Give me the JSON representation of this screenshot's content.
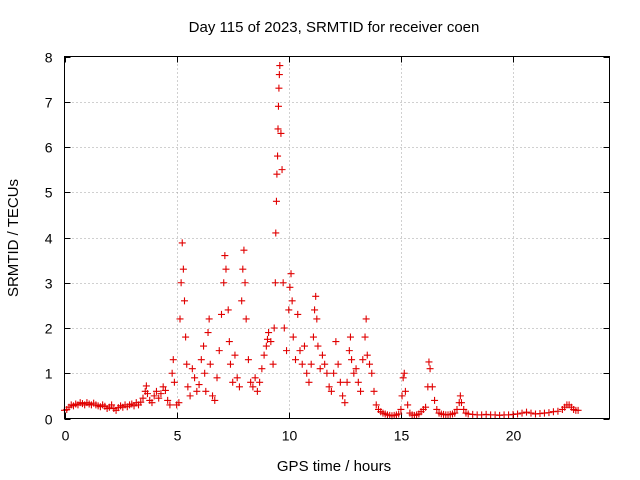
{
  "chart_data": {
    "type": "scatter",
    "title": "Day 115 of 2023, SRMTID for receiver coen",
    "xlabel": "GPS time / hours",
    "ylabel": "SRMTID / TECUs",
    "xlim": [
      0,
      24.3
    ],
    "ylim": [
      0,
      8
    ],
    "xticks": [
      0,
      5,
      10,
      15,
      20
    ],
    "yticks": [
      0,
      1,
      2,
      3,
      4,
      5,
      6,
      7,
      8
    ],
    "grid": true,
    "marker": "plus",
    "series_color": "#e00000",
    "series": [
      {
        "name": "SRMTID",
        "points": [
          [
            0.0,
            0.18
          ],
          [
            0.1,
            0.2
          ],
          [
            0.2,
            0.25
          ],
          [
            0.3,
            0.3
          ],
          [
            0.4,
            0.28
          ],
          [
            0.5,
            0.32
          ],
          [
            0.6,
            0.3
          ],
          [
            0.7,
            0.35
          ],
          [
            0.8,
            0.33
          ],
          [
            0.9,
            0.3
          ],
          [
            1.0,
            0.35
          ],
          [
            1.1,
            0.32
          ],
          [
            1.2,
            0.3
          ],
          [
            1.3,
            0.34
          ],
          [
            1.4,
            0.3
          ],
          [
            1.5,
            0.28
          ],
          [
            1.6,
            0.26
          ],
          [
            1.7,
            0.3
          ],
          [
            1.8,
            0.27
          ],
          [
            1.9,
            0.22
          ],
          [
            2.0,
            0.25
          ],
          [
            2.1,
            0.3
          ],
          [
            2.2,
            0.22
          ],
          [
            2.3,
            0.18
          ],
          [
            2.4,
            0.24
          ],
          [
            2.5,
            0.28
          ],
          [
            2.6,
            0.25
          ],
          [
            2.7,
            0.3
          ],
          [
            2.8,
            0.26
          ],
          [
            2.9,
            0.3
          ],
          [
            3.0,
            0.32
          ],
          [
            3.1,
            0.28
          ],
          [
            3.2,
            0.35
          ],
          [
            3.3,
            0.3
          ],
          [
            3.4,
            0.36
          ],
          [
            3.5,
            0.45
          ],
          [
            3.6,
            0.6
          ],
          [
            3.65,
            0.72
          ],
          [
            3.7,
            0.55
          ],
          [
            3.8,
            0.4
          ],
          [
            3.9,
            0.35
          ],
          [
            4.0,
            0.5
          ],
          [
            4.1,
            0.6
          ],
          [
            4.2,
            0.45
          ],
          [
            4.3,
            0.55
          ],
          [
            4.4,
            0.7
          ],
          [
            4.5,
            0.62
          ],
          [
            4.6,
            0.4
          ],
          [
            4.7,
            0.3
          ],
          [
            4.8,
            1.0
          ],
          [
            4.85,
            1.3
          ],
          [
            4.9,
            0.8
          ],
          [
            5.0,
            0.3
          ],
          [
            5.1,
            0.35
          ],
          [
            5.15,
            2.2
          ],
          [
            5.2,
            3.0
          ],
          [
            5.25,
            3.88
          ],
          [
            5.3,
            3.3
          ],
          [
            5.35,
            2.6
          ],
          [
            5.4,
            1.8
          ],
          [
            5.45,
            1.2
          ],
          [
            5.5,
            0.7
          ],
          [
            5.6,
            0.5
          ],
          [
            5.7,
            1.1
          ],
          [
            5.8,
            0.9
          ],
          [
            5.9,
            0.6
          ],
          [
            6.0,
            0.75
          ],
          [
            6.1,
            1.3
          ],
          [
            6.2,
            1.6
          ],
          [
            6.25,
            1.0
          ],
          [
            6.3,
            0.6
          ],
          [
            6.4,
            1.9
          ],
          [
            6.45,
            2.2
          ],
          [
            6.5,
            1.2
          ],
          [
            6.6,
            0.5
          ],
          [
            6.7,
            0.4
          ],
          [
            6.8,
            0.9
          ],
          [
            6.9,
            1.5
          ],
          [
            7.0,
            2.3
          ],
          [
            7.1,
            3.0
          ],
          [
            7.15,
            3.6
          ],
          [
            7.2,
            3.3
          ],
          [
            7.3,
            2.4
          ],
          [
            7.35,
            1.7
          ],
          [
            7.4,
            1.2
          ],
          [
            7.5,
            0.8
          ],
          [
            7.6,
            1.4
          ],
          [
            7.7,
            0.9
          ],
          [
            7.8,
            0.7
          ],
          [
            7.9,
            2.6
          ],
          [
            7.95,
            3.3
          ],
          [
            8.0,
            3.72
          ],
          [
            8.05,
            3.0
          ],
          [
            8.1,
            2.2
          ],
          [
            8.2,
            1.3
          ],
          [
            8.3,
            0.8
          ],
          [
            8.4,
            0.7
          ],
          [
            8.5,
            0.9
          ],
          [
            8.6,
            0.6
          ],
          [
            8.7,
            0.8
          ],
          [
            8.8,
            1.1
          ],
          [
            8.9,
            1.4
          ],
          [
            9.0,
            1.6
          ],
          [
            9.05,
            1.75
          ],
          [
            9.1,
            1.9
          ],
          [
            9.2,
            1.7
          ],
          [
            9.3,
            1.2
          ],
          [
            9.35,
            2.0
          ],
          [
            9.4,
            3.0
          ],
          [
            9.42,
            4.1
          ],
          [
            9.45,
            4.8
          ],
          [
            9.47,
            5.4
          ],
          [
            9.5,
            5.8
          ],
          [
            9.52,
            6.4
          ],
          [
            9.54,
            6.9
          ],
          [
            9.56,
            7.3
          ],
          [
            9.58,
            7.6
          ],
          [
            9.6,
            7.8
          ],
          [
            9.65,
            6.3
          ],
          [
            9.7,
            5.5
          ],
          [
            9.75,
            3.0
          ],
          [
            9.8,
            2.0
          ],
          [
            9.9,
            1.5
          ],
          [
            10.0,
            2.4
          ],
          [
            10.05,
            2.9
          ],
          [
            10.1,
            3.2
          ],
          [
            10.15,
            2.6
          ],
          [
            10.2,
            1.8
          ],
          [
            10.3,
            1.3
          ],
          [
            10.4,
            2.3
          ],
          [
            10.5,
            1.5
          ],
          [
            10.6,
            1.2
          ],
          [
            10.7,
            1.6
          ],
          [
            10.8,
            1.0
          ],
          [
            10.9,
            0.8
          ],
          [
            11.0,
            1.2
          ],
          [
            11.1,
            1.8
          ],
          [
            11.15,
            2.4
          ],
          [
            11.2,
            2.7
          ],
          [
            11.25,
            2.2
          ],
          [
            11.3,
            1.6
          ],
          [
            11.4,
            1.1
          ],
          [
            11.5,
            1.4
          ],
          [
            11.6,
            1.2
          ],
          [
            11.7,
            1.0
          ],
          [
            11.8,
            0.7
          ],
          [
            11.9,
            0.6
          ],
          [
            12.0,
            1.0
          ],
          [
            12.1,
            1.7
          ],
          [
            12.2,
            1.2
          ],
          [
            12.3,
            0.8
          ],
          [
            12.4,
            0.5
          ],
          [
            12.5,
            0.35
          ],
          [
            12.6,
            0.8
          ],
          [
            12.7,
            1.5
          ],
          [
            12.75,
            1.8
          ],
          [
            12.8,
            1.3
          ],
          [
            12.9,
            1.0
          ],
          [
            13.0,
            1.1
          ],
          [
            13.1,
            0.8
          ],
          [
            13.2,
            0.6
          ],
          [
            13.3,
            1.3
          ],
          [
            13.4,
            1.8
          ],
          [
            13.45,
            2.2
          ],
          [
            13.5,
            1.4
          ],
          [
            13.6,
            1.2
          ],
          [
            13.7,
            1.0
          ],
          [
            13.8,
            0.6
          ],
          [
            13.9,
            0.3
          ],
          [
            14.0,
            0.2
          ],
          [
            14.1,
            0.15
          ],
          [
            14.2,
            0.12
          ],
          [
            14.3,
            0.1
          ],
          [
            14.4,
            0.08
          ],
          [
            14.5,
            0.07
          ],
          [
            14.6,
            0.06
          ],
          [
            14.7,
            0.07
          ],
          [
            14.8,
            0.08
          ],
          [
            14.9,
            0.1
          ],
          [
            15.0,
            0.2
          ],
          [
            15.05,
            0.5
          ],
          [
            15.1,
            0.9
          ],
          [
            15.15,
            1.0
          ],
          [
            15.2,
            0.6
          ],
          [
            15.3,
            0.3
          ],
          [
            15.4,
            0.12
          ],
          [
            15.5,
            0.08
          ],
          [
            15.6,
            0.07
          ],
          [
            15.7,
            0.08
          ],
          [
            15.8,
            0.1
          ],
          [
            15.9,
            0.15
          ],
          [
            16.0,
            0.2
          ],
          [
            16.1,
            0.25
          ],
          [
            16.2,
            0.7
          ],
          [
            16.25,
            1.25
          ],
          [
            16.3,
            1.1
          ],
          [
            16.4,
            0.7
          ],
          [
            16.5,
            0.4
          ],
          [
            16.6,
            0.2
          ],
          [
            16.7,
            0.12
          ],
          [
            16.8,
            0.1
          ],
          [
            16.9,
            0.09
          ],
          [
            17.0,
            0.08
          ],
          [
            17.1,
            0.08
          ],
          [
            17.2,
            0.09
          ],
          [
            17.3,
            0.1
          ],
          [
            17.4,
            0.12
          ],
          [
            17.5,
            0.2
          ],
          [
            17.6,
            0.35
          ],
          [
            17.65,
            0.5
          ],
          [
            17.7,
            0.35
          ],
          [
            17.8,
            0.2
          ],
          [
            17.9,
            0.12
          ],
          [
            18.0,
            0.1
          ],
          [
            18.2,
            0.09
          ],
          [
            18.4,
            0.08
          ],
          [
            18.6,
            0.08
          ],
          [
            18.8,
            0.09
          ],
          [
            19.0,
            0.08
          ],
          [
            19.2,
            0.08
          ],
          [
            19.4,
            0.07
          ],
          [
            19.6,
            0.08
          ],
          [
            19.8,
            0.08
          ],
          [
            20.0,
            0.09
          ],
          [
            20.2,
            0.1
          ],
          [
            20.4,
            0.12
          ],
          [
            20.6,
            0.14
          ],
          [
            20.8,
            0.12
          ],
          [
            21.0,
            0.1
          ],
          [
            21.2,
            0.11
          ],
          [
            21.4,
            0.12
          ],
          [
            21.6,
            0.13
          ],
          [
            21.8,
            0.15
          ],
          [
            22.0,
            0.16
          ],
          [
            22.2,
            0.2
          ],
          [
            22.3,
            0.25
          ],
          [
            22.4,
            0.3
          ],
          [
            22.5,
            0.3
          ],
          [
            22.6,
            0.25
          ],
          [
            22.7,
            0.2
          ],
          [
            22.8,
            0.18
          ],
          [
            22.9,
            0.18
          ]
        ]
      }
    ]
  }
}
